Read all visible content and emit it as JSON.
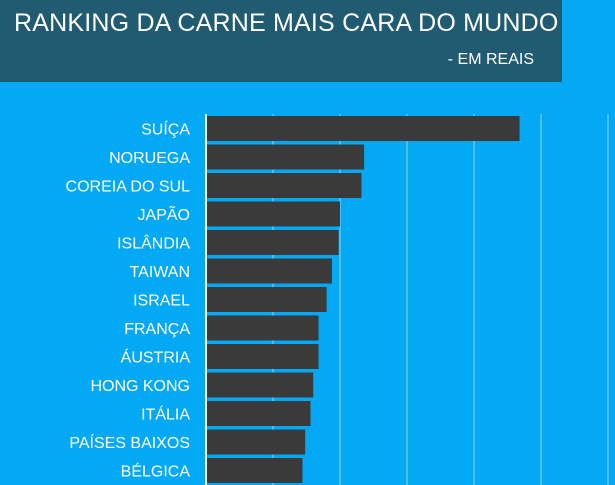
{
  "header": {
    "title": "RANKING DA CARNE MAIS CARA DO MUNDO",
    "subtitle": "- EM REAIS"
  },
  "colors": {
    "background": "#03A9F4",
    "header": "#215B72",
    "bar": "#3A3A3A",
    "gridline": "#8ED8FA",
    "axis": "#FFFFFF",
    "text": "#FFFFFF"
  },
  "chart_data": {
    "type": "bar",
    "orientation": "horizontal",
    "title": "RANKING DA CARNE MAIS CARA DO MUNDO",
    "subtitle": "- EM REAIS",
    "xlabel": "",
    "ylabel": "",
    "categories": [
      "SUÍÇA",
      "NORUEGA",
      "COREIA DO SUL",
      "JAPÃO",
      "ISLÂNDIA",
      "TAIWAN",
      "ISRAEL",
      "FRANÇA",
      "ÁUSTRIA",
      "HONG KONG",
      "ITÁLIA",
      "PAÍSES BAIXOS",
      "BÉLGICA"
    ],
    "values": [
      117,
      59,
      58,
      50,
      49.5,
      47,
      45,
      42,
      42,
      40,
      39,
      37,
      36
    ],
    "xlim": [
      0,
      150
    ],
    "grid": true,
    "legend": "none"
  }
}
